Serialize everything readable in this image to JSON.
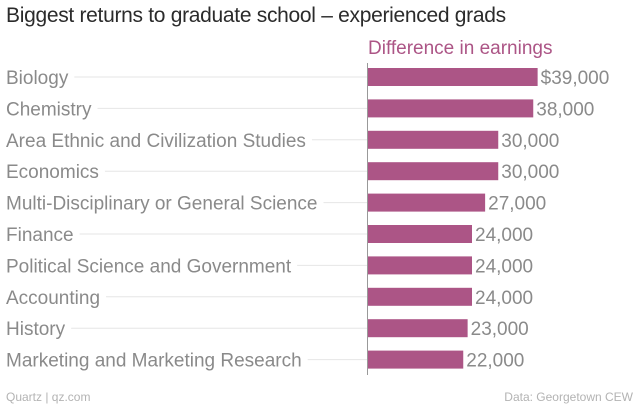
{
  "chart_data": {
    "type": "bar",
    "orientation": "horizontal",
    "title": "Biggest returns to graduate school – experienced grads",
    "series": [
      {
        "name": "Difference in earnings",
        "values": [
          39000,
          38000,
          30000,
          30000,
          27000,
          24000,
          24000,
          24000,
          23000,
          22000
        ]
      }
    ],
    "categories": [
      "Biology",
      "Chemistry",
      "Area Ethnic and Civilization Studies",
      "Economics",
      "Multi-Disciplinary or General Science",
      "Finance",
      "Political Science and Government",
      "Accounting",
      "History",
      "Marketing and Marketing Research"
    ],
    "value_labels": [
      "$39,000",
      "38,000",
      "30,000",
      "30,000",
      "27,000",
      "24,000",
      "24,000",
      "24,000",
      "23,000",
      "22,000"
    ],
    "xlim": [
      0,
      40000
    ],
    "bar_color": "#ac5586",
    "label_color": "#8a8a8a",
    "guide_color": "#e6e6e6",
    "axis_color": "#999999"
  },
  "footer": {
    "source_left": "Quartz | qz.com",
    "source_right": "Data: Georgetown CEW"
  }
}
